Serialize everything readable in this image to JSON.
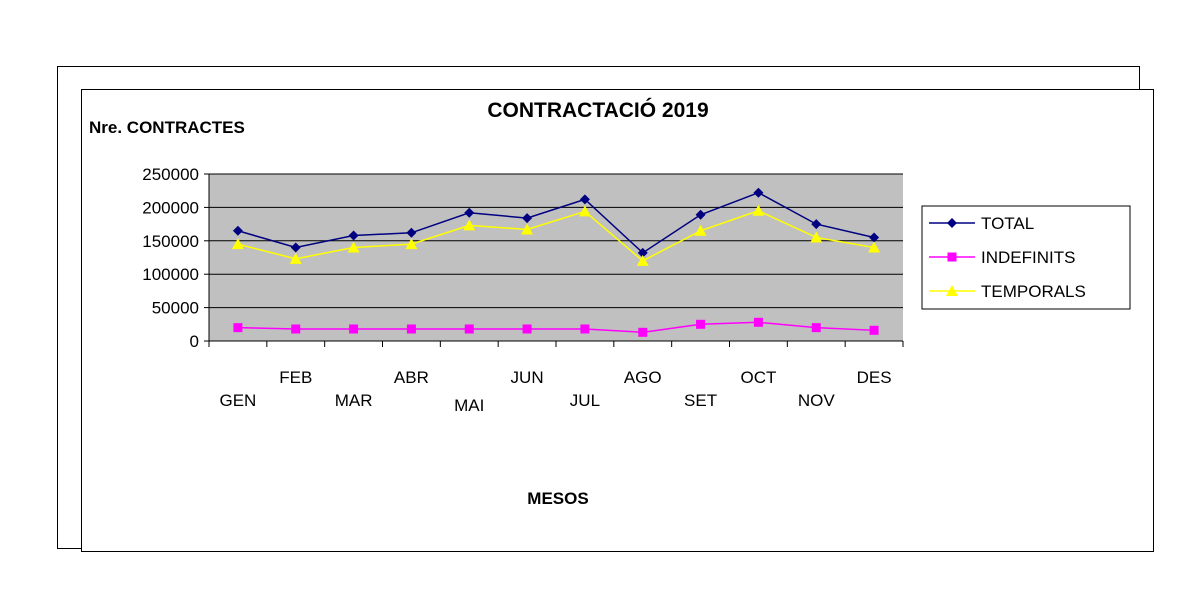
{
  "chart_data": {
    "type": "line",
    "title": "CONTRACTACIÓ 2019",
    "ylabel": "Nre. CONTRACTES",
    "xlabel": "MESOS",
    "categories": [
      "GEN",
      "FEB",
      "MAR",
      "ABR",
      "MAI",
      "JUN",
      "JUL",
      "AGO",
      "SET",
      "OCT",
      "NOV",
      "DES"
    ],
    "ylim": [
      0,
      250000
    ],
    "yticks": [
      "250000",
      "200000",
      "150000",
      "100000",
      "50000",
      "0"
    ],
    "ytick_values": [
      250000,
      200000,
      150000,
      100000,
      50000,
      0
    ],
    "grid": true,
    "legend_position": "right",
    "plot_background": "#c0c0c0",
    "series": [
      {
        "name": "TOTAL",
        "color": "#000080",
        "marker": "diamond",
        "values": [
          165000,
          140000,
          158000,
          162000,
          192000,
          184000,
          212000,
          132000,
          189000,
          222000,
          175000,
          155000
        ]
      },
      {
        "name": "INDEFINITS",
        "color": "#ff00ff",
        "marker": "square",
        "values": [
          20000,
          18000,
          18000,
          18000,
          18000,
          18000,
          18000,
          13000,
          25000,
          28000,
          20000,
          16000
        ]
      },
      {
        "name": "TEMPORALS",
        "color": "#ffff00",
        "marker": "triangle",
        "values": [
          145000,
          123000,
          140000,
          145000,
          173000,
          167000,
          194000,
          120000,
          165000,
          195000,
          155000,
          140000
        ]
      }
    ]
  }
}
